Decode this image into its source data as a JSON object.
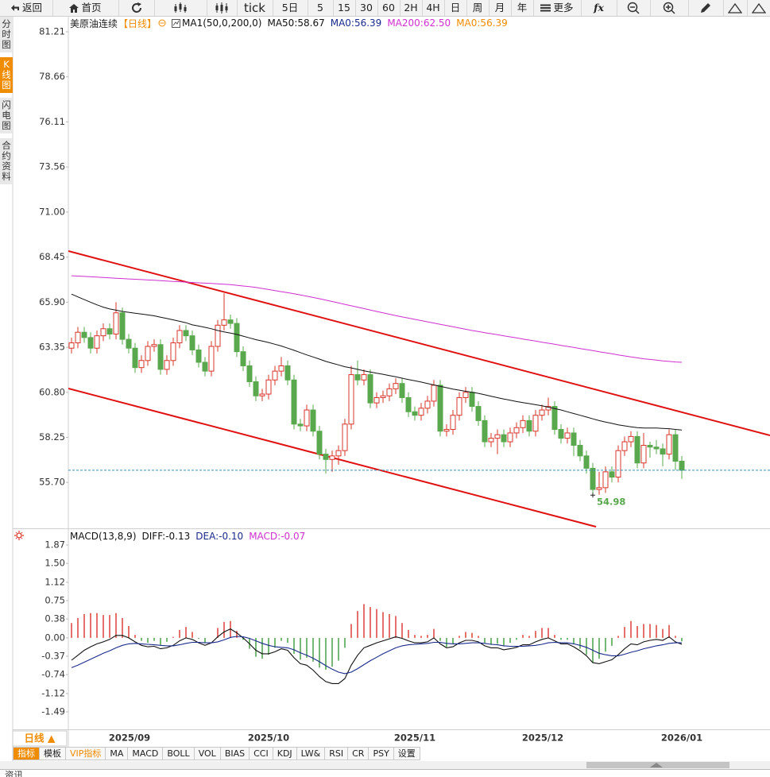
{
  "toolbar": {
    "back": "返回",
    "home": "首页",
    "periods": [
      "tick",
      "5日",
      "5",
      "15",
      "30",
      "60",
      "2H",
      "4H",
      "日",
      "周",
      "月",
      "年"
    ],
    "more": "更多",
    "formula": "fx"
  },
  "sidebar": [
    "分时图",
    "K线图",
    "闪电图",
    "合约资料"
  ],
  "chart_data": [
    {
      "type": "candlestick",
      "title": "美原油连续",
      "period": "【日线】",
      "up_color": "#d9342b",
      "down_color": "#5aa84e",
      "price_line_color": "#3a8fb7",
      "indicator_labels": [
        {
          "text": "MA1(50,0,200,0)",
          "color": "#111111"
        },
        {
          "text": "MA0:56.39",
          "color": "#1a2a8c"
        },
        {
          "text": "MA0:56.39",
          "color": "#f08c00"
        }
      ],
      "ylim": [
        53.1,
        82.11
      ],
      "yticks": [
        81.21,
        78.66,
        76.11,
        73.56,
        {
          "value": 71,
          "label": "71.00"
        },
        68.45,
        {
          "value": 65.9,
          "label": "65.90"
        },
        63.35,
        {
          "value": 60.8,
          "label": "60.80"
        },
        58.25,
        {
          "value": 55.7,
          "label": "55.70"
        }
      ],
      "open": [
        63.3,
        63.6,
        64.2,
        63.9,
        63.3,
        64.0,
        64.4,
        64.1,
        65.3,
        63.8,
        63.3,
        62.2,
        62.6,
        63.4,
        63.5,
        62.1,
        62.6,
        63.6,
        64.3,
        64.0,
        63.2,
        62.5,
        62.0,
        63.4,
        64.6,
        64.9,
        64.7,
        63.1,
        62.3,
        61.4,
        60.6,
        60.7,
        61.5,
        62.0,
        62.3,
        61.5,
        59.0,
        58.9,
        59.8,
        58.6,
        57.3,
        57.0,
        57.2,
        57.5,
        59.0,
        61.8,
        61.5,
        61.8,
        60.2,
        60.5,
        60.6,
        61.0,
        61.3,
        60.5,
        59.7,
        59.5,
        59.9,
        60.3,
        61.2,
        58.6,
        58.7,
        59.5,
        60.5,
        60.8,
        60.0,
        59.2,
        58.0,
        58.2,
        58.4,
        58.0,
        58.5,
        58.8,
        59.2,
        58.6,
        59.5,
        59.8,
        60.0,
        58.7,
        58.2,
        58.5,
        57.8,
        57.2,
        56.5,
        55.3,
        55.4,
        56.3,
        56.0,
        57.5,
        58.0,
        58.3,
        56.8,
        57.8,
        57.7,
        57.6,
        57.3,
        58.4,
        56.9
      ],
      "high": [
        63.9,
        64.5,
        64.5,
        64.2,
        64.3,
        64.7,
        64.7,
        65.9,
        65.6,
        64.1,
        63.6,
        62.9,
        63.7,
        63.8,
        63.8,
        62.9,
        63.9,
        64.6,
        64.6,
        64.3,
        63.5,
        62.8,
        63.7,
        64.9,
        66.4,
        65.2,
        65.0,
        63.4,
        62.6,
        61.7,
        61.0,
        61.8,
        62.3,
        62.8,
        62.6,
        61.8,
        59.3,
        60.1,
        60.1,
        58.9,
        57.6,
        57.5,
        57.8,
        59.3,
        62.3,
        62.6,
        62.1,
        62.1,
        60.8,
        60.9,
        61.3,
        61.6,
        61.6,
        60.8,
        60.0,
        60.2,
        60.6,
        61.5,
        61.5,
        59.0,
        59.8,
        60.8,
        61.1,
        61.1,
        60.3,
        59.5,
        58.5,
        58.7,
        58.7,
        58.8,
        59.1,
        59.5,
        59.5,
        59.8,
        60.1,
        60.5,
        60.3,
        59.0,
        58.8,
        58.8,
        58.1,
        57.5,
        56.8,
        56.3,
        56.6,
        56.6,
        57.8,
        58.3,
        58.6,
        58.6,
        58.5,
        58.0,
        58.1,
        57.9,
        58.7,
        58.7,
        57.2
      ],
      "low": [
        63.0,
        63.3,
        63.6,
        63.0,
        63.0,
        63.7,
        63.8,
        63.8,
        63.5,
        63.0,
        61.9,
        61.9,
        62.3,
        63.1,
        61.8,
        61.8,
        62.3,
        63.3,
        63.7,
        62.9,
        62.2,
        61.7,
        61.7,
        63.1,
        64.3,
        64.4,
        62.8,
        62.0,
        61.1,
        60.3,
        60.3,
        60.4,
        61.2,
        61.7,
        61.2,
        58.7,
        58.6,
        58.6,
        58.3,
        57.0,
        56.2,
        56.3,
        56.7,
        57.2,
        58.7,
        61.2,
        61.2,
        59.9,
        59.9,
        60.2,
        60.3,
        60.7,
        60.2,
        59.4,
        59.2,
        59.2,
        59.6,
        60.0,
        58.3,
        58.3,
        58.4,
        59.2,
        60.2,
        59.7,
        58.9,
        57.7,
        57.7,
        57.3,
        57.7,
        57.7,
        58.2,
        58.5,
        58.3,
        58.3,
        59.2,
        59.5,
        58.4,
        57.9,
        57.9,
        57.2,
        56.9,
        56.2,
        54.98,
        55.0,
        55.1,
        55.7,
        55.7,
        57.2,
        57.7,
        56.5,
        56.5,
        57.1,
        57.3,
        56.6,
        57.0,
        56.4,
        55.9
      ],
      "close": [
        63.6,
        64.2,
        63.9,
        63.3,
        64.0,
        64.4,
        64.1,
        65.3,
        63.8,
        63.3,
        62.2,
        62.6,
        63.4,
        63.5,
        62.1,
        62.6,
        63.6,
        64.3,
        64.0,
        63.2,
        62.5,
        62.0,
        63.4,
        64.6,
        64.9,
        64.7,
        63.1,
        62.3,
        61.4,
        60.6,
        60.7,
        61.5,
        62.0,
        62.3,
        61.5,
        59.0,
        58.9,
        59.8,
        58.6,
        57.3,
        57.0,
        57.2,
        57.5,
        59.0,
        61.8,
        61.5,
        61.8,
        60.2,
        60.5,
        60.6,
        61.0,
        61.3,
        60.5,
        59.7,
        59.5,
        59.9,
        60.3,
        61.2,
        58.6,
        58.7,
        59.5,
        60.5,
        60.8,
        60.0,
        59.2,
        58.0,
        58.2,
        58.4,
        58.0,
        58.5,
        58.8,
        59.2,
        58.6,
        59.5,
        59.8,
        60.0,
        58.7,
        58.2,
        58.5,
        57.8,
        57.2,
        56.5,
        55.3,
        55.4,
        56.3,
        56.0,
        57.5,
        58.0,
        58.3,
        56.8,
        57.8,
        57.7,
        57.6,
        57.3,
        58.4,
        56.9,
        56.39
      ],
      "series": [
        {
          "name": "MA50:58.67",
          "color": "#111111",
          "values": [
            66.36,
            66.2,
            66.05,
            65.9,
            65.75,
            65.62,
            65.52,
            65.45,
            65.38,
            65.33,
            65.28,
            65.23,
            65.18,
            65.13,
            65.05,
            64.98,
            64.9,
            64.82,
            64.74,
            64.62,
            64.55,
            64.48,
            64.4,
            64.3,
            64.22,
            64.15,
            64.08,
            63.98,
            63.88,
            63.78,
            63.7,
            63.62,
            63.52,
            63.42,
            63.3,
            63.18,
            63.05,
            62.92,
            62.8,
            62.68,
            62.55,
            62.45,
            62.35,
            62.25,
            62.18,
            62.1,
            62.02,
            61.95,
            61.88,
            61.82,
            61.75,
            61.68,
            61.6,
            61.52,
            61.45,
            61.38,
            61.3,
            61.22,
            61.14,
            61.06,
            60.98,
            60.92,
            60.86,
            60.8,
            60.74,
            60.66,
            60.58,
            60.5,
            60.42,
            60.35,
            60.28,
            60.22,
            60.16,
            60.1,
            60.04,
            59.96,
            59.88,
            59.8,
            59.7,
            59.6,
            59.5,
            59.4,
            59.3,
            59.2,
            59.12,
            59.04,
            58.96,
            58.9,
            58.85,
            58.8,
            58.78,
            58.78,
            58.78,
            58.76,
            58.74,
            58.7,
            58.67
          ]
        },
        {
          "name": "MA200:62.50",
          "color": "#d02fd0",
          "values": [
            67.4,
            67.38,
            67.36,
            67.34,
            67.32,
            67.3,
            67.28,
            67.26,
            67.24,
            67.22,
            67.2,
            67.18,
            67.16,
            67.14,
            67.12,
            67.1,
            67.08,
            67.06,
            67.04,
            67.02,
            67.0,
            66.98,
            66.96,
            66.94,
            66.92,
            66.9,
            66.86,
            66.82,
            66.78,
            66.74,
            66.68,
            66.62,
            66.56,
            66.5,
            66.44,
            66.38,
            66.31,
            66.24,
            66.17,
            66.1,
            66.02,
            65.94,
            65.86,
            65.78,
            65.7,
            65.62,
            65.54,
            65.46,
            65.38,
            65.3,
            65.22,
            65.14,
            65.07,
            65.0,
            64.93,
            64.86,
            64.79,
            64.72,
            64.65,
            64.58,
            64.51,
            64.44,
            64.37,
            64.3,
            64.24,
            64.18,
            64.12,
            64.06,
            64.0,
            63.94,
            63.88,
            63.82,
            63.76,
            63.7,
            63.64,
            63.58,
            63.52,
            63.46,
            63.4,
            63.34,
            63.28,
            63.22,
            63.16,
            63.1,
            63.04,
            62.98,
            62.92,
            62.86,
            62.8,
            62.75,
            62.7,
            62.66,
            62.62,
            62.58,
            62.55,
            62.52,
            62.5
          ]
        }
      ]
    },
    {
      "type": "macd",
      "title": "MACD(13,8,9)",
      "title_color": "#111111",
      "ylim": [
        -1.842,
        2.158
      ],
      "yticks": [
        1.87,
        {
          "value": 1.5,
          "label": "1.50"
        },
        1.12,
        0.75,
        0.38,
        {
          "value": 0,
          "label": "0.00"
        },
        -0.37,
        -0.74,
        -1.12,
        -1.49
      ],
      "x_labels": [
        "2025/09",
        "2025/10",
        "2025/11",
        "2025/12",
        "2026/01"
      ],
      "up_color": "#d9342b",
      "down_color": "#3c9a3c",
      "series": [
        {
          "name": "DIFF:-0.13",
          "color": "#111111",
          "values": [
            -0.45,
            -0.35,
            -0.25,
            -0.18,
            -0.12,
            -0.08,
            -0.03,
            0.05,
            0.05,
            0.0,
            -0.08,
            -0.15,
            -0.18,
            -0.17,
            -0.22,
            -0.2,
            -0.15,
            -0.06,
            0.0,
            -0.03,
            -0.1,
            -0.15,
            -0.1,
            0.02,
            0.12,
            0.18,
            0.1,
            0.0,
            -0.12,
            -0.25,
            -0.32,
            -0.32,
            -0.28,
            -0.22,
            -0.25,
            -0.4,
            -0.52,
            -0.55,
            -0.65,
            -0.78,
            -0.88,
            -0.92,
            -0.92,
            -0.82,
            -0.55,
            -0.35,
            -0.2,
            -0.15,
            -0.1,
            -0.06,
            -0.02,
            0.02,
            -0.01,
            -0.06,
            -0.1,
            -0.1,
            -0.08,
            0.0,
            -0.12,
            -0.2,
            -0.18,
            -0.1,
            -0.05,
            -0.05,
            -0.08,
            -0.16,
            -0.2,
            -0.2,
            -0.24,
            -0.22,
            -0.19,
            -0.14,
            -0.14,
            -0.08,
            -0.03,
            0.0,
            -0.06,
            -0.12,
            -0.12,
            -0.18,
            -0.26,
            -0.36,
            -0.5,
            -0.52,
            -0.48,
            -0.44,
            -0.34,
            -0.22,
            -0.12,
            -0.14,
            -0.08,
            -0.05,
            -0.03,
            -0.05,
            0.02,
            -0.08,
            -0.13
          ]
        },
        {
          "name": "DEA:-0.10",
          "color": "#1a2a8c",
          "values": [
            -0.6,
            -0.55,
            -0.49,
            -0.43,
            -0.37,
            -0.31,
            -0.26,
            -0.2,
            -0.15,
            -0.12,
            -0.11,
            -0.12,
            -0.13,
            -0.14,
            -0.15,
            -0.16,
            -0.16,
            -0.14,
            -0.11,
            -0.09,
            -0.09,
            -0.1,
            -0.1,
            -0.08,
            -0.04,
            0.01,
            0.03,
            0.02,
            -0.01,
            -0.06,
            -0.11,
            -0.15,
            -0.18,
            -0.19,
            -0.2,
            -0.24,
            -0.3,
            -0.35,
            -0.41,
            -0.48,
            -0.56,
            -0.63,
            -0.69,
            -0.72,
            -0.69,
            -0.62,
            -0.54,
            -0.46,
            -0.39,
            -0.32,
            -0.26,
            -0.2,
            -0.16,
            -0.14,
            -0.13,
            -0.12,
            -0.11,
            -0.09,
            -0.09,
            -0.11,
            -0.12,
            -0.12,
            -0.11,
            -0.1,
            -0.1,
            -0.11,
            -0.13,
            -0.14,
            -0.16,
            -0.17,
            -0.17,
            -0.17,
            -0.16,
            -0.15,
            -0.13,
            -0.1,
            -0.09,
            -0.1,
            -0.1,
            -0.12,
            -0.15,
            -0.19,
            -0.25,
            -0.31,
            -0.34,
            -0.36,
            -0.36,
            -0.33,
            -0.29,
            -0.26,
            -0.22,
            -0.19,
            -0.16,
            -0.14,
            -0.11,
            -0.1,
            -0.1
          ]
        },
        {
          "name": "MACD:-0.07",
          "color": "#d02fd0",
          "values": [
            0.3,
            0.4,
            0.48,
            0.5,
            0.5,
            0.46,
            0.46,
            0.5,
            0.4,
            0.24,
            0.06,
            -0.06,
            -0.1,
            -0.06,
            -0.14,
            -0.08,
            0.02,
            0.16,
            0.22,
            0.12,
            -0.02,
            -0.1,
            0.0,
            0.2,
            0.32,
            0.34,
            0.14,
            -0.04,
            -0.22,
            -0.38,
            -0.42,
            -0.34,
            -0.2,
            -0.06,
            -0.1,
            -0.32,
            -0.44,
            -0.4,
            -0.48,
            -0.6,
            -0.64,
            -0.58,
            -0.46,
            -0.2,
            0.28,
            0.54,
            0.68,
            0.62,
            0.58,
            0.52,
            0.48,
            0.44,
            0.3,
            0.16,
            0.06,
            0.04,
            0.06,
            0.18,
            -0.06,
            -0.18,
            -0.12,
            0.04,
            0.12,
            0.1,
            0.04,
            -0.1,
            -0.14,
            -0.12,
            -0.16,
            -0.1,
            -0.04,
            0.06,
            0.04,
            0.14,
            0.2,
            0.2,
            0.06,
            -0.04,
            -0.04,
            -0.12,
            -0.22,
            -0.34,
            -0.5,
            -0.42,
            -0.28,
            -0.16,
            0.04,
            0.22,
            0.34,
            0.24,
            0.28,
            0.28,
            0.26,
            0.18,
            0.26,
            0.04,
            -0.07
          ]
        }
      ]
    }
  ],
  "period_button": "日线 ▲",
  "tabs": [
    "指标",
    "模板",
    "VIP指标",
    "MA",
    "MACD",
    "BOLL",
    "VOL",
    "BIAS",
    "CCI",
    "KDJ",
    "LW&",
    "RSI",
    "CR",
    "PSY",
    "设置"
  ],
  "footer": "资讯"
}
